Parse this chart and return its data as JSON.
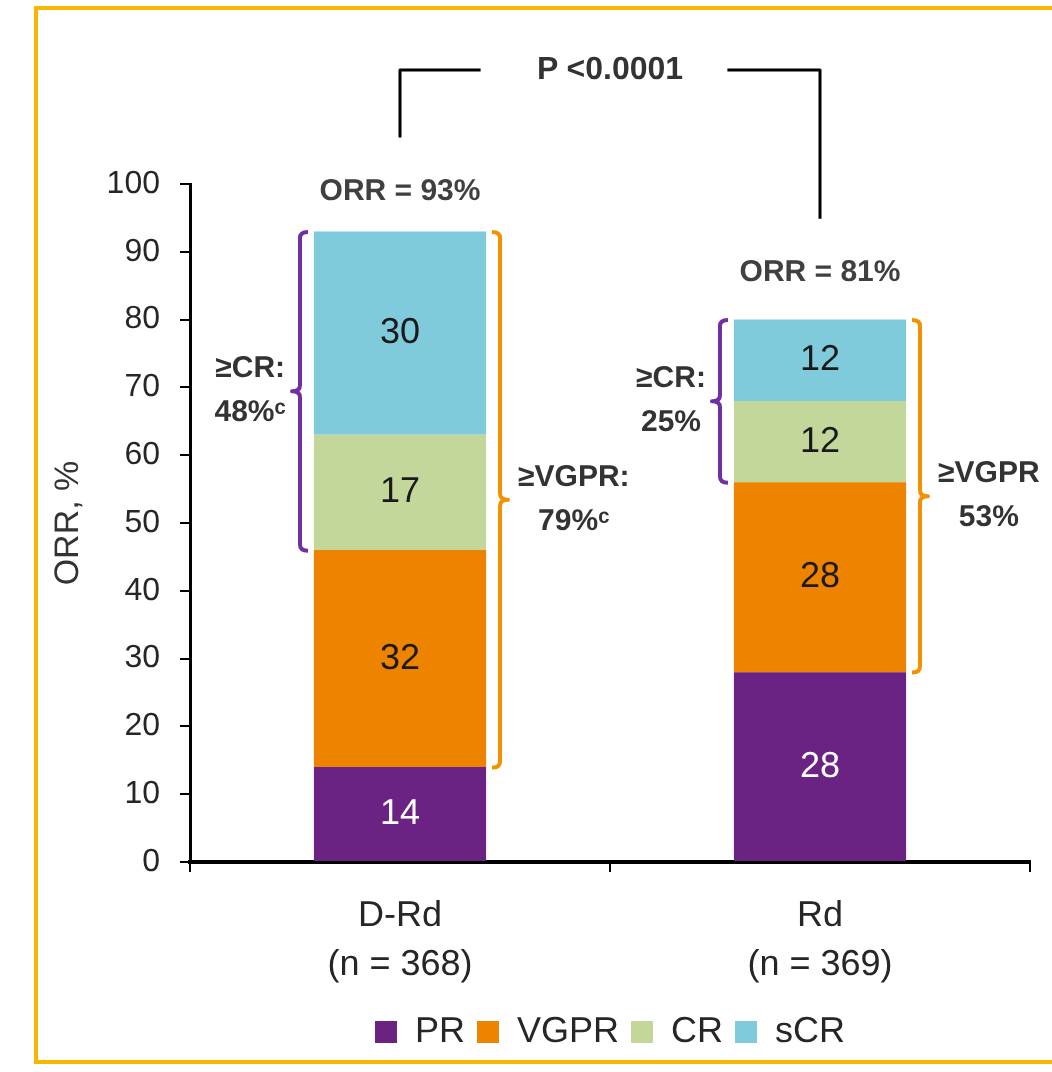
{
  "chart_data": {
    "type": "bar",
    "stacked": true,
    "categories": [
      "D-Rd\n(n = 368)",
      "Rd\n(n = 369)"
    ],
    "series": [
      {
        "name": "PR",
        "color": "#6a2382",
        "values": [
          14,
          28
        ]
      },
      {
        "name": "VGPR",
        "color": "#ee8300",
        "values": [
          32,
          28
        ]
      },
      {
        "name": "CR",
        "color": "#c4d79b",
        "values": [
          17,
          12
        ]
      },
      {
        "name": "sCR",
        "color": "#7fcbdc",
        "values": [
          30,
          12
        ]
      }
    ],
    "ylabel": "ORR, %",
    "ylim": [
      0,
      100
    ],
    "yticks": [
      0,
      10,
      20,
      30,
      40,
      50,
      60,
      70,
      80,
      90,
      100
    ],
    "data_labels": true,
    "legend": "bottom",
    "annotations": [
      "P <0.0001",
      {
        "text": "ORR = 93%",
        "x": "D-Rd\n(n = 368)",
        "y": 93
      },
      {
        "text": "ORR = 81%",
        "x": "Rd\n(n = 369)",
        "y": 81
      },
      "≥CR:\n48%ᶜ",
      "≥VGPR:\n79%ᶜ",
      "≥CR:\n25%",
      "≥VGPR\n53%"
    ]
  }
}
